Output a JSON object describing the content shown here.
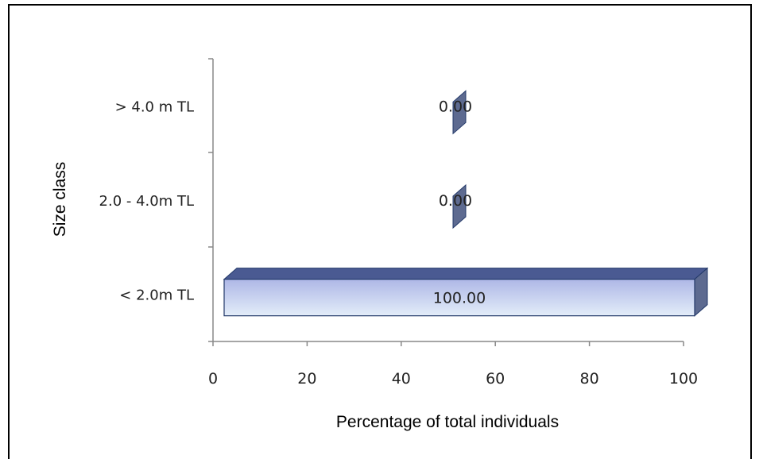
{
  "chart_data": {
    "type": "bar",
    "orientation": "horizontal",
    "categories": [
      "< 2.0m TL",
      "2.0 - 4.0m TL",
      "> 4.0 m TL"
    ],
    "values": [
      100.0,
      0.0,
      0.0
    ],
    "data_labels": [
      "100.00",
      "0.00",
      "0.00"
    ],
    "xlabel": "Percentage of total individuals",
    "ylabel": "Size class",
    "xlim": [
      0,
      100
    ],
    "xticks": [
      "0",
      "20",
      "40",
      "60",
      "80",
      "100"
    ],
    "grid": false,
    "legend": "none",
    "style": "3d-cylinder",
    "colors": {
      "bar_face_top": "#aeb7e6",
      "bar_face_bottom": "#e3edf9",
      "bar_top": "#4a5a92",
      "bar_side": "#5d6a90",
      "bar_edge": "#243a6a",
      "axis": "#888888"
    }
  }
}
